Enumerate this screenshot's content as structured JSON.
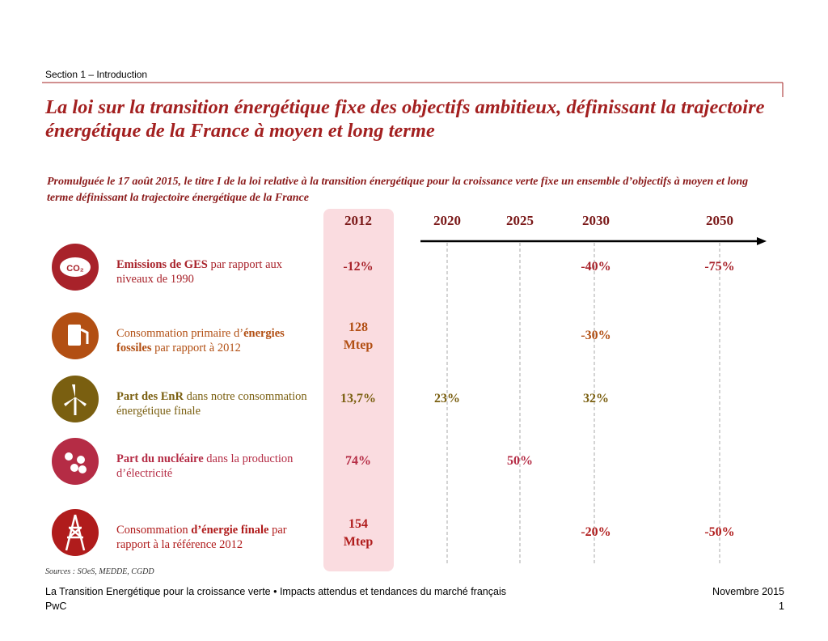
{
  "header": {
    "section": "Section 1 – Introduction"
  },
  "title": "La loi sur la transition énergétique fixe des objectifs ambitieux, définissant la trajectoire énergétique de la France à moyen et long terme",
  "subtitle": "Promulguée le 17 août 2015, le titre I de la loi relative à la transition énergétique pour la croissance verte fixe un ensemble d’objectifs à moyen et long terme définissant la trajectoire énergétique de la France",
  "years": [
    "2012",
    "2020",
    "2025",
    "2030",
    "2050"
  ],
  "rows": [
    {
      "icon_text": "CO₂",
      "color": "#a8222a",
      "label": [
        {
          "text": "Emissions de GES",
          "bold": true
        },
        {
          "text": " par rapport aux niveaux de  1990",
          "bold": false
        }
      ],
      "values": [
        "-12%",
        null,
        null,
        "-40%",
        "-75%"
      ]
    },
    {
      "icon_text": null,
      "color": "#b24f13",
      "label": [
        {
          "text": "Consommation primaire d’",
          "bold": false
        },
        {
          "text": "énergies fossiles",
          "bold": true
        },
        {
          "text": " par rapport à 2012",
          "bold": false
        }
      ],
      "values": [
        "128 Mtep",
        null,
        null,
        "-30%",
        null
      ]
    },
    {
      "icon_text": null,
      "color": "#7a5f10",
      "label": [
        {
          "text": "Part des EnR",
          "bold": true
        },
        {
          "text": " dans notre consommation énergétique finale",
          "bold": false
        }
      ],
      "values": [
        "13,7%",
        "23%",
        null,
        "32%",
        null
      ]
    },
    {
      "icon_text": null,
      "color": "#b52c45",
      "label": [
        {
          "text": "Part du nucléaire",
          "bold": true
        },
        {
          "text": " dans la production d’électricité",
          "bold": false
        }
      ],
      "values": [
        "74%",
        null,
        "50%",
        null,
        null
      ]
    },
    {
      "icon_text": null,
      "color": "#b01c1c",
      "label": [
        {
          "text": "Consommation ",
          "bold": false
        },
        {
          "text": "d’énergie finale",
          "bold": true
        },
        {
          "text": " par rapport à la référence 2012",
          "bold": false
        }
      ],
      "values": [
        "154 Mtep",
        null,
        null,
        "-20%",
        "-50%"
      ]
    }
  ],
  "sources": "Sources : SOeS, MEDDE, CGDD",
  "footer": {
    "left": "La Transition Energétique pour la croissance verte  • Impacts attendus et tendances du marché français",
    "company": "PwC",
    "date": "Novembre 2015",
    "page": "1"
  }
}
